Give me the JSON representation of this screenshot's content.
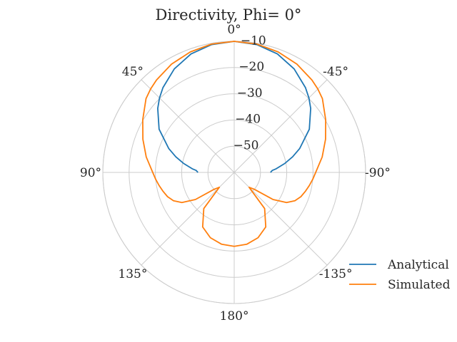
{
  "chart_data": {
    "type": "line",
    "polar": true,
    "title": "Directivity, Phi= 0°",
    "theta_zero_location": "top",
    "theta_direction": "clockwise",
    "angle_tick_labels": [
      "0°",
      "-45°",
      "-90°",
      "-135°",
      "180°",
      "135°",
      "90°",
      "45°"
    ],
    "angle_tick_values_deg": [
      0,
      -45,
      -90,
      -135,
      180,
      135,
      90,
      45
    ],
    "radial_ticks": [
      -50,
      -40,
      -30,
      -20,
      -10
    ],
    "radial_tick_labels": [
      "−50",
      "−40",
      "−30",
      "−20",
      "−10"
    ],
    "rlim": [
      -60,
      -10
    ],
    "grid": true,
    "legend_position": "lower-right",
    "colors": {
      "Analytical": "#1f77b4",
      "Simulated": "#ff7f0e",
      "grid": "#cccccc",
      "text": "#262626"
    },
    "series": [
      {
        "name": "Analytical",
        "theta_deg": [
          -90,
          -87,
          -85,
          -80,
          -75,
          -70,
          -60,
          -50,
          -45,
          -40,
          -30,
          -20,
          -10,
          0,
          10,
          20,
          30,
          40,
          45,
          50,
          60,
          70,
          75,
          80,
          85,
          87,
          90
        ],
        "values": [
          -46.2,
          -45.5,
          -44.0,
          -40.5,
          -37.0,
          -33.5,
          -27.0,
          -22.0,
          -19.8,
          -17.8,
          -14.4,
          -11.9,
          -10.5,
          -10.0,
          -10.5,
          -11.9,
          -14.4,
          -17.8,
          -19.8,
          -22.0,
          -27.0,
          -33.5,
          -37.0,
          -40.5,
          -44.0,
          -45.5,
          -46.2
        ]
      },
      {
        "name": "Simulated",
        "theta_deg": [
          -180,
          -170,
          -160,
          -150,
          -140,
          -135,
          -130,
          -125,
          -120,
          -115,
          -110,
          -105,
          -100,
          -95,
          -90,
          -80,
          -70,
          -60,
          -50,
          -45,
          -40,
          -30,
          -20,
          -10,
          0,
          10,
          20,
          30,
          40,
          45,
          50,
          60,
          70,
          80,
          90,
          95,
          100,
          105,
          110,
          115,
          120,
          125,
          130,
          135,
          140,
          150,
          160,
          170,
          180
        ],
        "values": [
          -31.8,
          -32.2,
          -33.5,
          -36.0,
          -42.0,
          -52.0,
          -50.0,
          -42.0,
          -37.0,
          -34.5,
          -33.0,
          -32.0,
          -31.0,
          -30.0,
          -29.0,
          -26.0,
          -23.0,
          -19.8,
          -16.2,
          -15.0,
          -14.0,
          -12.3,
          -11.1,
          -10.3,
          -10.0,
          -10.3,
          -11.1,
          -12.3,
          -14.0,
          -15.0,
          -16.2,
          -19.8,
          -23.0,
          -26.0,
          -29.0,
          -30.0,
          -31.0,
          -32.0,
          -33.0,
          -34.5,
          -37.0,
          -42.0,
          -50.0,
          -52.0,
          -42.0,
          -36.0,
          -33.5,
          -32.2,
          -31.8
        ]
      }
    ]
  }
}
